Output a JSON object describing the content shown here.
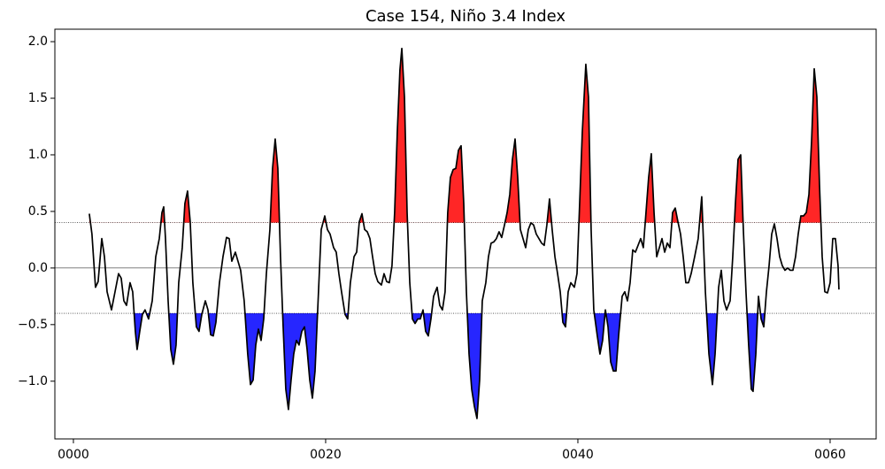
{
  "chart_data": {
    "type": "line",
    "title": "Case 154, Niño 3.4 Index",
    "x": [
      1.26,
      1.47,
      1.75,
      1.96,
      2.25,
      2.46,
      2.67,
      3.02,
      3.3,
      3.58,
      3.79,
      4.0,
      4.21,
      4.49,
      4.7,
      4.91,
      5.05,
      5.26,
      5.47,
      5.68,
      5.96,
      6.25,
      6.53,
      6.81,
      7.02,
      7.16,
      7.3,
      7.51,
      7.72,
      7.93,
      8.14,
      8.35,
      8.63,
      8.84,
      9.05,
      9.26,
      9.47,
      9.75,
      9.96,
      10.18,
      10.46,
      10.67,
      10.88,
      11.09,
      11.3,
      11.58,
      11.86,
      12.14,
      12.35,
      12.56,
      12.84,
      13.05,
      13.26,
      13.54,
      13.82,
      14.04,
      14.25,
      14.46,
      14.67,
      14.88,
      15.09,
      15.3,
      15.58,
      15.79,
      16.0,
      16.21,
      16.42,
      16.63,
      16.84,
      17.05,
      17.26,
      17.47,
      17.68,
      17.89,
      18.11,
      18.32,
      18.53,
      18.74,
      18.95,
      19.16,
      19.37,
      19.65,
      19.93,
      20.14,
      20.35,
      20.63,
      20.84,
      21.05,
      21.26,
      21.54,
      21.75,
      21.96,
      22.25,
      22.46,
      22.67,
      22.88,
      23.09,
      23.3,
      23.51,
      23.72,
      23.93,
      24.14,
      24.42,
      24.63,
      24.84,
      25.05,
      25.26,
      25.47,
      25.68,
      25.89,
      26.04,
      26.25,
      26.46,
      26.67,
      26.88,
      27.09,
      27.3,
      27.51,
      27.72,
      27.93,
      28.14,
      28.35,
      28.56,
      28.84,
      29.05,
      29.26,
      29.47,
      29.68,
      29.89,
      30.11,
      30.32,
      30.53,
      30.74,
      30.95,
      31.16,
      31.37,
      31.58,
      31.79,
      32.0,
      32.21,
      32.42,
      32.7,
      32.91,
      33.12,
      33.33,
      33.54,
      33.75,
      33.96,
      34.18,
      34.39,
      34.6,
      34.81,
      35.02,
      35.23,
      35.44,
      35.65,
      35.86,
      36.07,
      36.28,
      36.49,
      36.7,
      36.91,
      37.12,
      37.33,
      37.54,
      37.75,
      37.96,
      38.18,
      38.39,
      38.6,
      38.81,
      39.02,
      39.23,
      39.44,
      39.72,
      39.93,
      40.14,
      40.35,
      40.63,
      40.84,
      41.05,
      41.26,
      41.54,
      41.75,
      41.96,
      42.18,
      42.39,
      42.6,
      42.81,
      43.02,
      43.23,
      43.51,
      43.72,
      43.93,
      44.14,
      44.35,
      44.56,
      44.77,
      44.98,
      45.19,
      45.4,
      45.61,
      45.82,
      46.04,
      46.25,
      46.46,
      46.67,
      46.88,
      47.09,
      47.3,
      47.51,
      47.72,
      47.93,
      48.14,
      48.35,
      48.56,
      48.77,
      48.98,
      49.26,
      49.54,
      49.82,
      50.11,
      50.39,
      50.67,
      50.88,
      51.16,
      51.37,
      51.58,
      51.79,
      52.07,
      52.28,
      52.49,
      52.7,
      52.91,
      53.12,
      53.33,
      53.54,
      53.75,
      53.89,
      54.11,
      54.32,
      54.53,
      54.74,
      54.95,
      55.16,
      55.37,
      55.58,
      55.79,
      56.0,
      56.21,
      56.42,
      56.63,
      56.84,
      57.05,
      57.26,
      57.47,
      57.68,
      57.89,
      58.11,
      58.32,
      58.53,
      58.74,
      58.95,
      59.16,
      59.37,
      59.58,
      59.79,
      60.0,
      60.21,
      60.42,
      60.63,
      60.7
    ],
    "series": [
      {
        "color": "#000000",
        "values": [
          0.48,
          0.3,
          -0.17,
          -0.12,
          0.26,
          0.1,
          -0.21,
          -0.37,
          -0.21,
          -0.05,
          -0.09,
          -0.29,
          -0.33,
          -0.13,
          -0.21,
          -0.56,
          -0.72,
          -0.56,
          -0.41,
          -0.37,
          -0.45,
          -0.29,
          0.1,
          0.26,
          0.49,
          0.54,
          0.26,
          -0.29,
          -0.72,
          -0.85,
          -0.68,
          -0.13,
          0.18,
          0.57,
          0.68,
          0.41,
          -0.13,
          -0.52,
          -0.56,
          -0.41,
          -0.29,
          -0.37,
          -0.59,
          -0.6,
          -0.48,
          -0.13,
          0.1,
          0.27,
          0.26,
          0.06,
          0.14,
          0.06,
          -0.02,
          -0.29,
          -0.76,
          -1.03,
          -0.99,
          -0.68,
          -0.54,
          -0.64,
          -0.45,
          -0.05,
          0.34,
          0.88,
          1.14,
          0.88,
          0.1,
          -0.52,
          -1.07,
          -1.25,
          -0.99,
          -0.76,
          -0.64,
          -0.68,
          -0.56,
          -0.52,
          -0.72,
          -0.99,
          -1.15,
          -0.91,
          -0.37,
          0.34,
          0.46,
          0.34,
          0.3,
          0.18,
          0.14,
          -0.05,
          -0.21,
          -0.41,
          -0.45,
          -0.13,
          0.1,
          0.14,
          0.41,
          0.48,
          0.34,
          0.32,
          0.26,
          0.1,
          -0.05,
          -0.12,
          -0.15,
          -0.05,
          -0.12,
          -0.13,
          0.02,
          0.49,
          1.2,
          1.75,
          1.94,
          1.51,
          0.49,
          -0.13,
          -0.45,
          -0.49,
          -0.45,
          -0.45,
          -0.37,
          -0.56,
          -0.6,
          -0.45,
          -0.25,
          -0.17,
          -0.33,
          -0.37,
          -0.21,
          0.49,
          0.8,
          0.87,
          0.88,
          1.04,
          1.08,
          0.57,
          -0.21,
          -0.76,
          -1.07,
          -1.22,
          -1.33,
          -0.99,
          -0.29,
          -0.13,
          0.1,
          0.22,
          0.23,
          0.26,
          0.32,
          0.27,
          0.38,
          0.49,
          0.65,
          0.96,
          1.14,
          0.8,
          0.34,
          0.26,
          0.18,
          0.34,
          0.4,
          0.38,
          0.3,
          0.26,
          0.22,
          0.2,
          0.38,
          0.61,
          0.34,
          0.1,
          -0.05,
          -0.21,
          -0.48,
          -0.52,
          -0.21,
          -0.13,
          -0.17,
          -0.05,
          0.57,
          1.2,
          1.8,
          1.51,
          0.34,
          -0.37,
          -0.6,
          -0.76,
          -0.64,
          -0.37,
          -0.52,
          -0.83,
          -0.91,
          -0.91,
          -0.6,
          -0.25,
          -0.21,
          -0.29,
          -0.13,
          0.16,
          0.14,
          0.2,
          0.26,
          0.18,
          0.49,
          0.8,
          1.01,
          0.49,
          0.1,
          0.18,
          0.26,
          0.14,
          0.22,
          0.18,
          0.49,
          0.53,
          0.41,
          0.3,
          0.1,
          -0.13,
          -0.13,
          -0.05,
          0.1,
          0.26,
          0.63,
          -0.21,
          -0.76,
          -1.03,
          -0.76,
          -0.17,
          -0.02,
          -0.29,
          -0.37,
          -0.29,
          0.1,
          0.57,
          0.96,
          1.0,
          0.34,
          -0.21,
          -0.68,
          -1.07,
          -1.09,
          -0.76,
          -0.25,
          -0.45,
          -0.52,
          -0.21,
          0.02,
          0.3,
          0.39,
          0.26,
          0.1,
          0.02,
          -0.02,
          0.0,
          -0.02,
          -0.02,
          0.1,
          0.3,
          0.46,
          0.46,
          0.49,
          0.65,
          1.12,
          1.76,
          1.51,
          0.73,
          0.1,
          -0.21,
          -0.22,
          -0.13,
          0.26,
          0.26,
          0.02,
          -0.19
        ]
      }
    ],
    "fills": [
      {
        "threshold": 0.4,
        "side": "above",
        "color": "#ff1a1a"
      },
      {
        "threshold": -0.4,
        "side": "below",
        "color": "#1a1aff"
      }
    ],
    "zero_line": true,
    "xlim": [
      -1.47,
      63.65
    ],
    "ylim": [
      -1.51,
      2.11
    ],
    "xticks": [
      {
        "value": 0,
        "label": "0000"
      },
      {
        "value": 20,
        "label": "0020"
      },
      {
        "value": 40,
        "label": "0040"
      },
      {
        "value": 60,
        "label": "0060"
      }
    ],
    "yticks": [
      {
        "value": -1.0,
        "label": "−1.0"
      },
      {
        "value": -0.5,
        "label": "−0.5"
      },
      {
        "value": 0.0,
        "label": "0.0"
      },
      {
        "value": 0.5,
        "label": "0.5"
      },
      {
        "value": 1.0,
        "label": "1.0"
      },
      {
        "value": 1.5,
        "label": "1.5"
      },
      {
        "value": 2.0,
        "label": "2.0"
      }
    ]
  }
}
